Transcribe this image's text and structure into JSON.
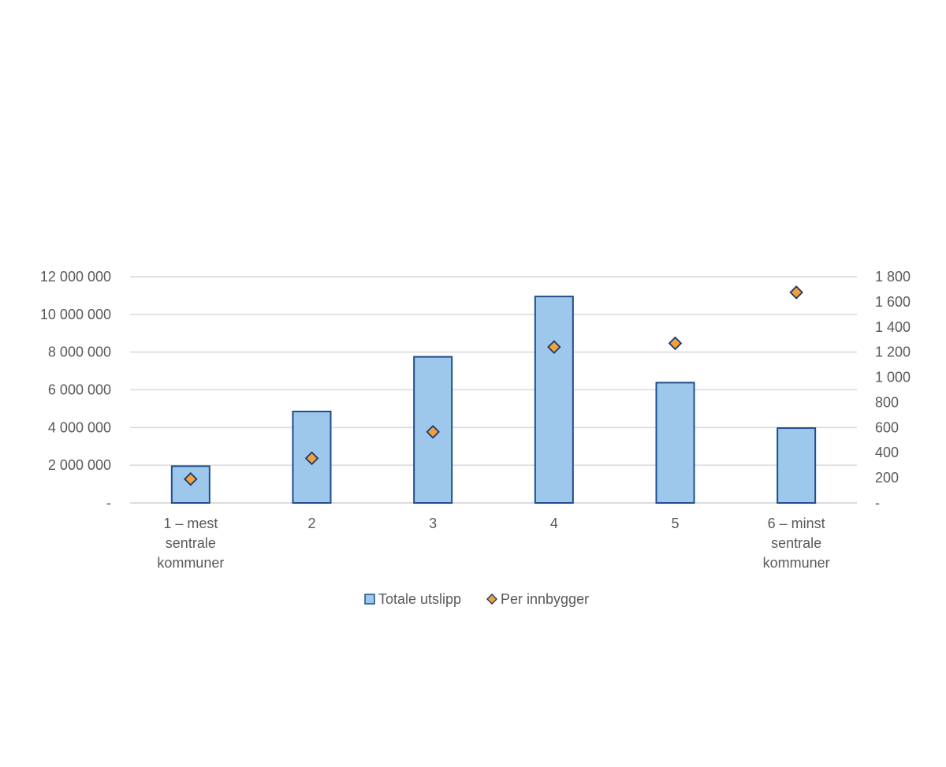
{
  "chart_data": {
    "type": "bar",
    "categories": [
      [
        "1 – mest",
        "sentrale",
        "kommuner"
      ],
      [
        "2"
      ],
      [
        "3"
      ],
      [
        "4"
      ],
      [
        "5"
      ],
      [
        "6 – minst",
        "sentrale",
        "kommuner"
      ]
    ],
    "series": [
      {
        "name": "Totale utslipp",
        "kind": "bar",
        "axis": "left",
        "values": [
          1950000,
          4850000,
          7750000,
          10950000,
          6380000,
          3970000
        ],
        "color": "#9DC8EC",
        "edge_color": "#1F4E8C"
      },
      {
        "name": "Per innbygger",
        "kind": "marker",
        "marker": "diamond",
        "axis": "right",
        "values": [
          190,
          355,
          565,
          1240,
          1270,
          1675
        ],
        "color": "#F0A040",
        "edge_color": "#1F3864"
      }
    ],
    "y_left": {
      "ylim": [
        0,
        12000000
      ],
      "ticks": [
        0,
        2000000,
        4000000,
        6000000,
        8000000,
        10000000,
        12000000
      ],
      "tick_labels": [
        "-",
        "2 000 000",
        "4 000 000",
        "6 000 000",
        "8 000 000",
        "10 000 000",
        "12 000 000"
      ]
    },
    "y_right": {
      "ylim": [
        0,
        1800
      ],
      "ticks": [
        0,
        200,
        400,
        600,
        800,
        1000,
        1200,
        1400,
        1600,
        1800
      ],
      "tick_labels": [
        "-",
        "200",
        "400",
        "600",
        "800",
        "1 000",
        "1 200",
        "1 400",
        "1 600",
        "1 800"
      ]
    },
    "grid": true,
    "legend_position": "bottom",
    "title": "",
    "xlabel": "",
    "ylabel": ""
  }
}
